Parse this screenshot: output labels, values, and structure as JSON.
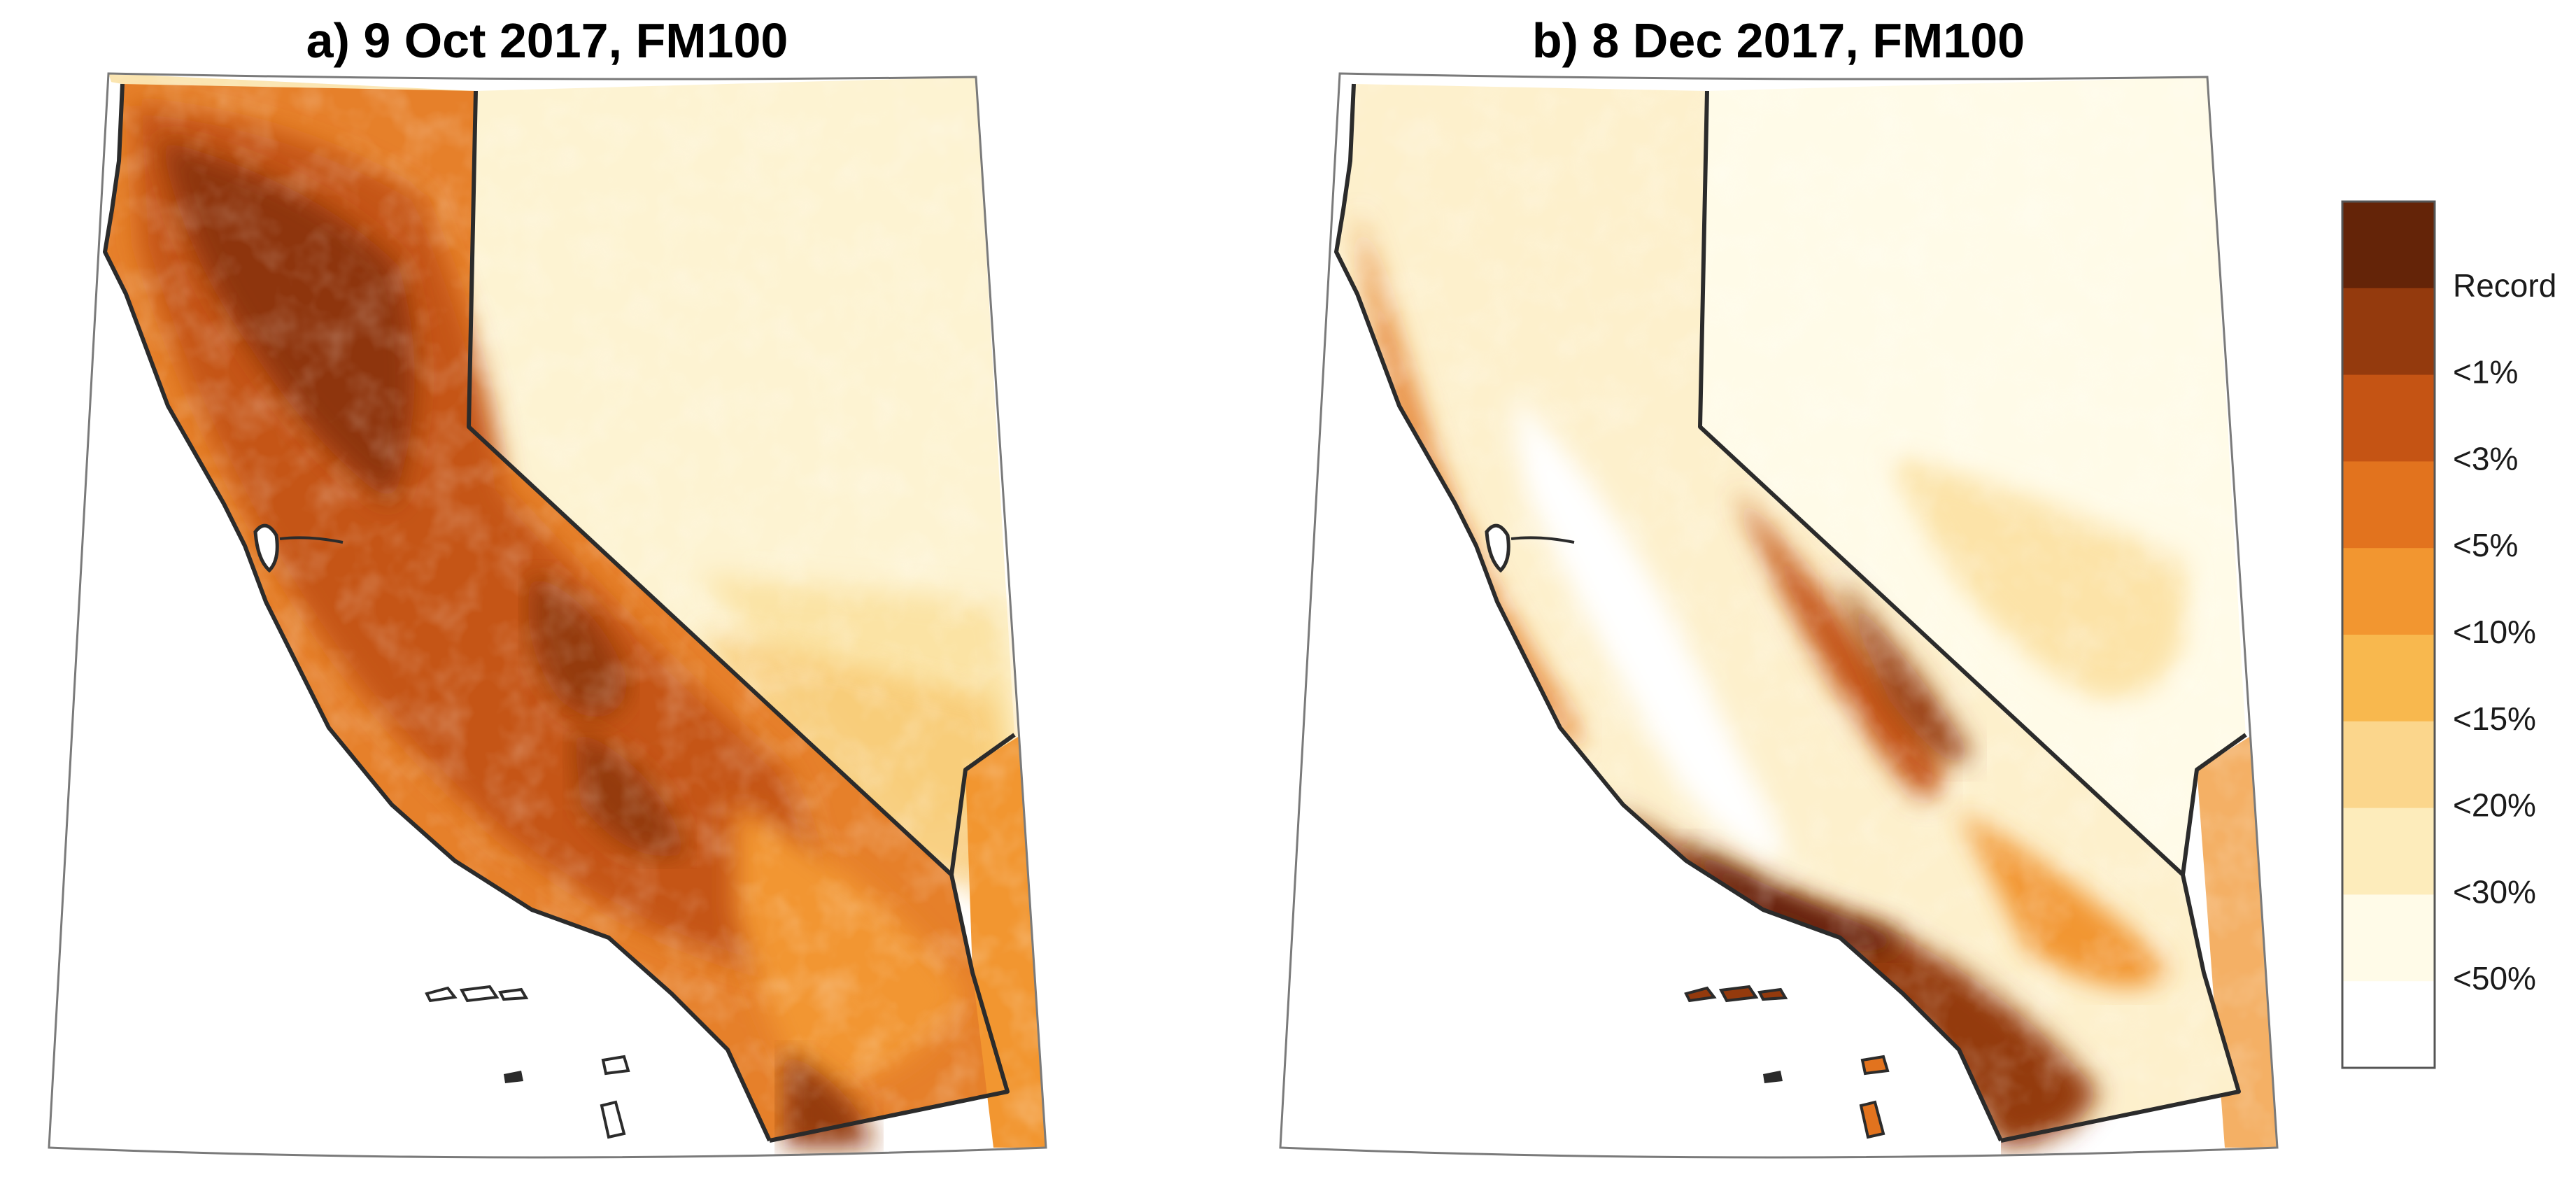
{
  "panels": [
    {
      "id": "a",
      "title": "a) 9 Oct 2017, FM100"
    },
    {
      "id": "b",
      "title": "b) 8 Dec 2017, FM100"
    }
  ],
  "legend": {
    "classes": [
      {
        "label": "Record",
        "color": "#642408"
      },
      {
        "label": "<1%",
        "color": "#943a0d"
      },
      {
        "label": "<3%",
        "color": "#c55414"
      },
      {
        "label": "<5%",
        "color": "#e2731e"
      },
      {
        "label": "<10%",
        "color": "#f29630"
      },
      {
        "label": "<15%",
        "color": "#f8b84e"
      },
      {
        "label": "<20%",
        "color": "#fbd68c"
      },
      {
        "label": "<30%",
        "color": "#fdecbb"
      },
      {
        "label": "<50%",
        "color": "#fffbe8"
      },
      {
        "label": "",
        "color": "#ffffff"
      }
    ]
  },
  "map_colors": {
    "outline": "#2b2b2b",
    "frame": "#7a7a7a",
    "background": "#ffffff"
  }
}
